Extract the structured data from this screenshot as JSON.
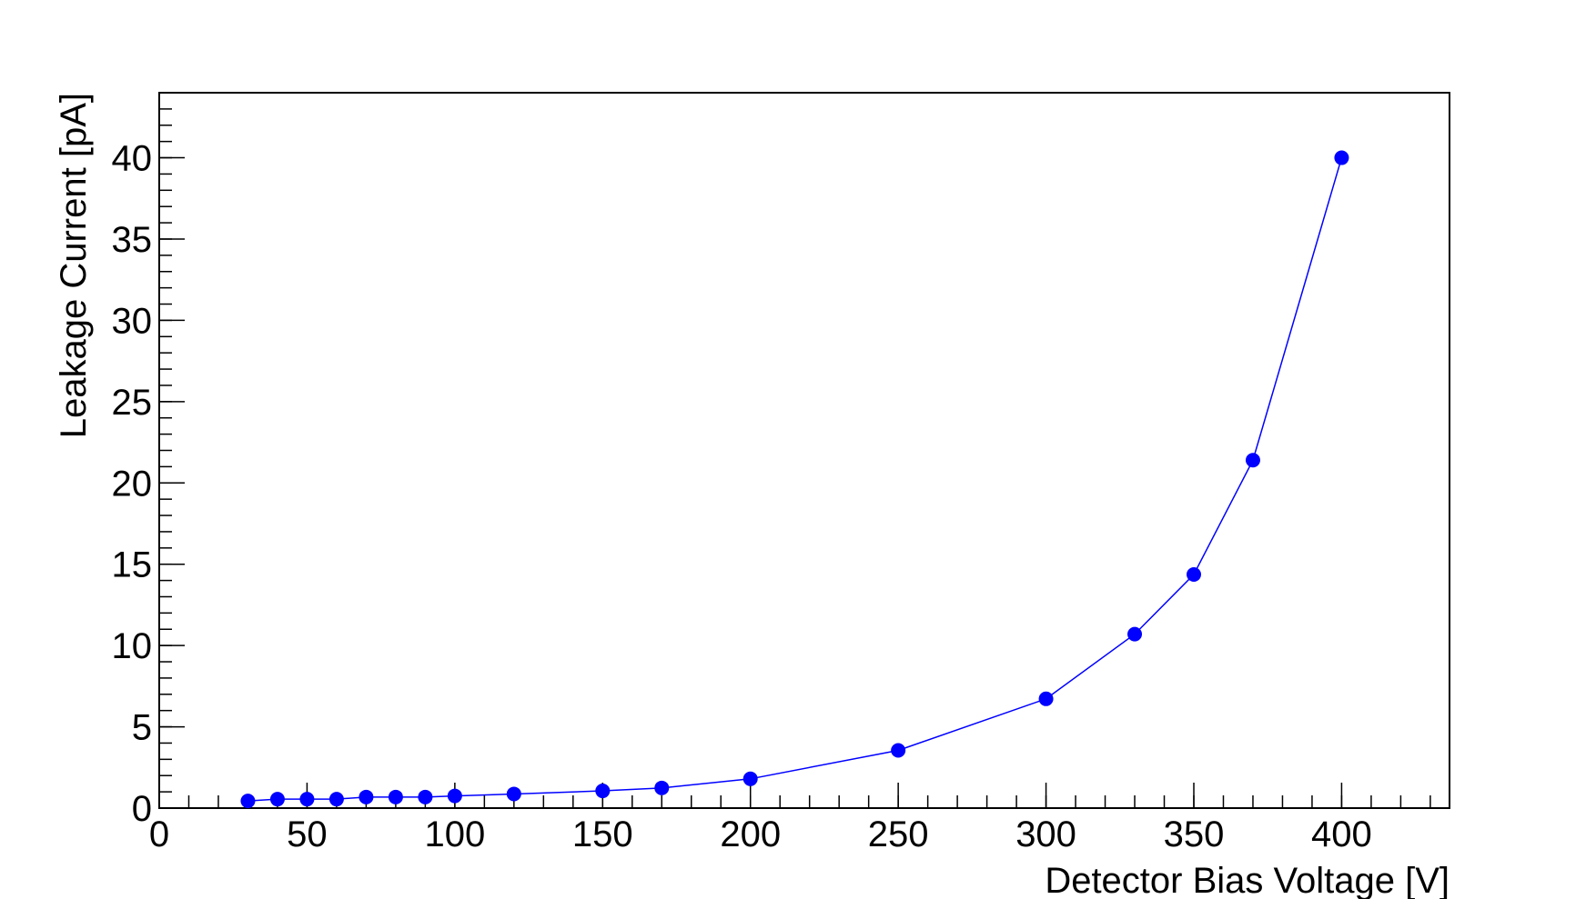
{
  "chart_data": {
    "type": "line",
    "xlabel": "Detector Bias Voltage [V]",
    "ylabel": "Leakage Current [pA]",
    "x": [
      30,
      40,
      50,
      60,
      70,
      80,
      90,
      100,
      120,
      150,
      170,
      200,
      250,
      300,
      330,
      350,
      370,
      400
    ],
    "series": [
      {
        "color": "#0000ff",
        "values": [
          0.44,
          0.55,
          0.55,
          0.55,
          0.68,
          0.68,
          0.68,
          0.75,
          0.87,
          1.06,
          1.24,
          1.8,
          3.55,
          6.72,
          10.7,
          14.37,
          21.4,
          40
        ]
      }
    ],
    "xlim": [
      0,
      436.5
    ],
    "ylim": [
      0,
      44
    ],
    "xticks": [
      0,
      50,
      100,
      150,
      200,
      250,
      300,
      350,
      400
    ],
    "yticks": [
      0,
      5,
      10,
      15,
      20,
      25,
      30,
      35,
      40
    ],
    "markers": true
  }
}
